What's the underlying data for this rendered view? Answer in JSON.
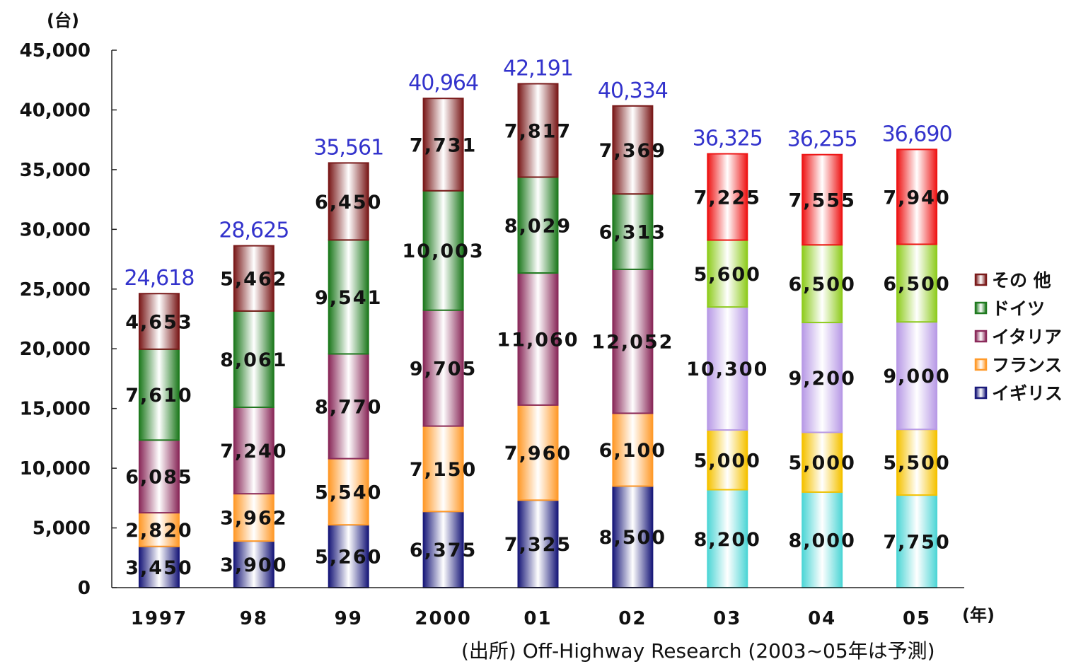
{
  "chart_data": {
    "type": "bar",
    "stacked": true,
    "y_unit": "(台)",
    "x_unit": "(年)",
    "ylim": [
      0,
      45000
    ],
    "y_ticks": [
      "0",
      "5,000",
      "10,000",
      "15,000",
      "20,000",
      "25,000",
      "30,000",
      "35,000",
      "40,000",
      "45,000"
    ],
    "y_tick_values": [
      0,
      5000,
      10000,
      15000,
      20000,
      25000,
      30000,
      35000,
      40000,
      45000
    ],
    "categories": [
      "1997",
      "98",
      "99",
      "2000",
      "01",
      "02",
      "03",
      "04",
      "05"
    ],
    "series": [
      {
        "name": "イギリス",
        "values": [
          3450,
          3900,
          5260,
          6375,
          7325,
          8500,
          8200,
          8000,
          7750
        ],
        "labels": [
          "3,450",
          "3,900",
          "5,260",
          "6,375",
          "7,325",
          "8,500",
          "8,200",
          "8,000",
          "7,750"
        ]
      },
      {
        "name": "フランス",
        "values": [
          2820,
          3962,
          5540,
          7150,
          7960,
          6100,
          5000,
          5000,
          5500
        ],
        "labels": [
          "2,820",
          "3,962",
          "5,540",
          "7,150",
          "7,960",
          "6,100",
          "5,000",
          "5,000",
          "5,500"
        ]
      },
      {
        "name": "イタリア",
        "values": [
          6085,
          7240,
          8770,
          9705,
          11060,
          12052,
          10300,
          9200,
          9000
        ],
        "labels": [
          "6,085",
          "7,240",
          "8,770",
          "9,705",
          "11,060",
          "12,052",
          "10,300",
          "9,200",
          "9,000"
        ]
      },
      {
        "name": "ドイツ",
        "values": [
          7610,
          8061,
          9541,
          10003,
          8029,
          6313,
          5600,
          6500,
          6500
        ],
        "labels": [
          "7,610",
          "8,061",
          "9,541",
          "10,003",
          "8,029",
          "6,313",
          "5,600",
          "6,500",
          "6,500"
        ]
      },
      {
        "name": "その 他",
        "values": [
          4653,
          5462,
          6450,
          7731,
          7817,
          7369,
          7225,
          7555,
          7940
        ],
        "labels": [
          "4,653",
          "5,462",
          "6,450",
          "7,731",
          "7,817",
          "7,369",
          "7,225",
          "7,555",
          "7,940"
        ]
      }
    ],
    "totals": [
      24618,
      28625,
      35561,
      40964,
      42191,
      40334,
      36325,
      36255,
      36690
    ],
    "total_labels": [
      "24,618",
      "28,625",
      "35,561",
      "40,964",
      "42,191",
      "40,334",
      "36,325",
      "36,255",
      "36,690"
    ],
    "legend_position": "right",
    "legend_order": [
      "その 他",
      "ドイツ",
      "イタリア",
      "フランス",
      "イギリス"
    ],
    "grid": false,
    "colors_actual": {
      "イギリス": "#1a1a7a",
      "フランス": "#ff9a2a",
      "イタリア": "#8a2a5a",
      "ドイツ": "#1f7a1f",
      "その 他": "#7a1a1a"
    },
    "colors_forecast": {
      "イギリス": "#4fd6d6",
      "フランス": "#f5c200",
      "イタリア": "#b89ae6",
      "ドイツ": "#8fcc1f",
      "その 他": "#ee1515"
    },
    "forecast_categories": [
      "03",
      "04",
      "05"
    ],
    "total_label_color": "#3333cc"
  },
  "source_note": "(出所) Off-Highway Research (2003~05年は予測)"
}
